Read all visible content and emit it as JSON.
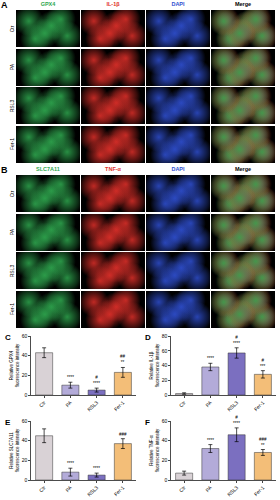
{
  "panels": [
    {
      "label": "A",
      "rows": [
        "Ctr",
        "PA",
        "RSL3",
        "Fer-1"
      ],
      "channels": [
        {
          "name": "GPX4",
          "color": "#2fa84f"
        },
        {
          "name": "IL-1β",
          "color": "#e0302a"
        },
        {
          "name": "DAPI",
          "color": "#2f4fd0"
        },
        {
          "name": "Merge",
          "color": "#000000"
        }
      ]
    },
    {
      "label": "B",
      "rows": [
        "Ctr",
        "PA",
        "RSL3",
        "Fer-1"
      ],
      "channels": [
        {
          "name": "SLC7A11",
          "color": "#2fa84f"
        },
        {
          "name": "TNF-α",
          "color": "#e0302a"
        },
        {
          "name": "DAPI",
          "color": "#2f4fd0"
        },
        {
          "name": "Merge",
          "color": "#000000"
        }
      ]
    }
  ],
  "chart_data": [
    {
      "label": "C",
      "type": "bar",
      "y_label": [
        "Relative GPX4",
        "fluorescence intensity"
      ],
      "categories": [
        "Ctr",
        "PA",
        "RSL3",
        "Fer-1"
      ],
      "values": [
        43,
        10,
        5,
        23
      ],
      "errors": [
        5,
        3,
        2,
        5
      ],
      "significance": [
        [],
        [
          "****"
        ],
        [
          "#",
          "****"
        ],
        [
          "##",
          "**"
        ]
      ],
      "colors": [
        "#d9d2d6",
        "#b3abd9",
        "#7b6fc0",
        "#f3be78"
      ],
      "ylim": [
        0,
        60
      ],
      "yticks": [
        0,
        20,
        40,
        60
      ]
    },
    {
      "label": "D",
      "type": "bar",
      "y_label": [
        "Relative IL-1β",
        "fluorescence intensity"
      ],
      "categories": [
        "Ctr",
        "PA",
        "RSL3",
        "Fer-1"
      ],
      "values": [
        2,
        38,
        57,
        28
      ],
      "errors": [
        1,
        5,
        7,
        5
      ],
      "significance": [
        [],
        [
          "****"
        ],
        [
          "#",
          "****"
        ],
        [
          "#",
          "***"
        ]
      ],
      "colors": [
        "#d9d2d6",
        "#b3abd9",
        "#7b6fc0",
        "#f3be78"
      ],
      "ylim": [
        0,
        80
      ],
      "yticks": [
        0,
        20,
        40,
        60,
        80
      ]
    },
    {
      "label": "E",
      "type": "bar",
      "y_label": [
        "Relative SLC7A11",
        "fluorescence intensity"
      ],
      "categories": [
        "Ctr",
        "PA",
        "RSL3",
        "Fer-1"
      ],
      "values": [
        45,
        8,
        5,
        37
      ],
      "errors": [
        7,
        4,
        2,
        5
      ],
      "significance": [
        [],
        [
          "****"
        ],
        [
          "****"
        ],
        [
          "###"
        ]
      ],
      "colors": [
        "#d9d2d6",
        "#b3abd9",
        "#7b6fc0",
        "#f3be78"
      ],
      "ylim": [
        0,
        60
      ],
      "yticks": [
        0,
        20,
        40,
        60
      ]
    },
    {
      "label": "F",
      "type": "bar",
      "y_label": [
        "Relative TNF-α",
        "fluorescence intensity"
      ],
      "categories": [
        "Ctr",
        "PA",
        "RSL3",
        "Fer-1"
      ],
      "values": [
        7,
        32,
        46,
        28
      ],
      "errors": [
        2,
        4,
        7,
        3
      ],
      "significance": [
        [],
        [
          "****"
        ],
        [
          "#",
          "****"
        ],
        [
          "###",
          "**"
        ]
      ],
      "colors": [
        "#d9d2d6",
        "#b3abd9",
        "#7b6fc0",
        "#f3be78"
      ],
      "ylim": [
        0,
        60
      ],
      "yticks": [
        0,
        20,
        40,
        60
      ]
    }
  ]
}
